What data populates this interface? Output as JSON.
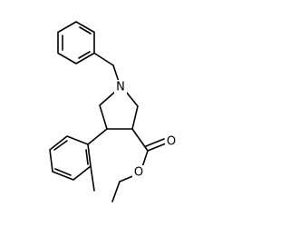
{
  "atoms": {
    "nitrogen": "N",
    "carbonyl_oxygen": "O",
    "ester_oxygen": "O"
  }
}
